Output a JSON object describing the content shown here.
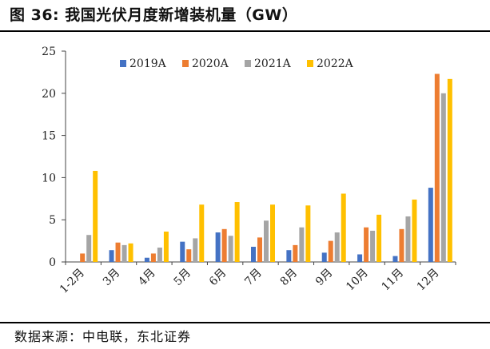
{
  "header": {
    "title": "图 36: 我国光伏月度新增装机量（GW）"
  },
  "footer": {
    "source": "数据来源：中电联，东北证券"
  },
  "chart_data": {
    "type": "bar",
    "title": "图 36: 我国光伏月度新增装机量（GW）",
    "xlabel": "",
    "ylabel": "",
    "ylim": [
      0,
      25
    ],
    "yticks": [
      0,
      5,
      10,
      15,
      20,
      25
    ],
    "grid": false,
    "legend": "top",
    "categories": [
      "1-2月",
      "3月",
      "4月",
      "5月",
      "6月",
      "7月",
      "8月",
      "9月",
      "10月",
      "11月",
      "12月"
    ],
    "series": [
      {
        "name": "2019A",
        "color": "#4472C4",
        "values": [
          0,
          1.4,
          0.5,
          2.4,
          3.5,
          1.8,
          1.4,
          1.1,
          0.9,
          0.7,
          8.8
        ]
      },
      {
        "name": "2020A",
        "color": "#ED7D31",
        "values": [
          1.0,
          2.3,
          1.0,
          1.5,
          3.9,
          2.9,
          2.0,
          2.5,
          4.1,
          3.9,
          22.3
        ]
      },
      {
        "name": "2021A",
        "color": "#A5A5A5",
        "values": [
          3.2,
          2.0,
          1.7,
          2.8,
          3.1,
          4.9,
          4.1,
          3.5,
          3.7,
          5.4,
          20.0
        ]
      },
      {
        "name": "2022A",
        "color": "#FFC000",
        "values": [
          10.8,
          2.2,
          3.6,
          6.8,
          7.1,
          6.8,
          6.7,
          8.1,
          5.6,
          7.4,
          21.7
        ]
      }
    ]
  }
}
